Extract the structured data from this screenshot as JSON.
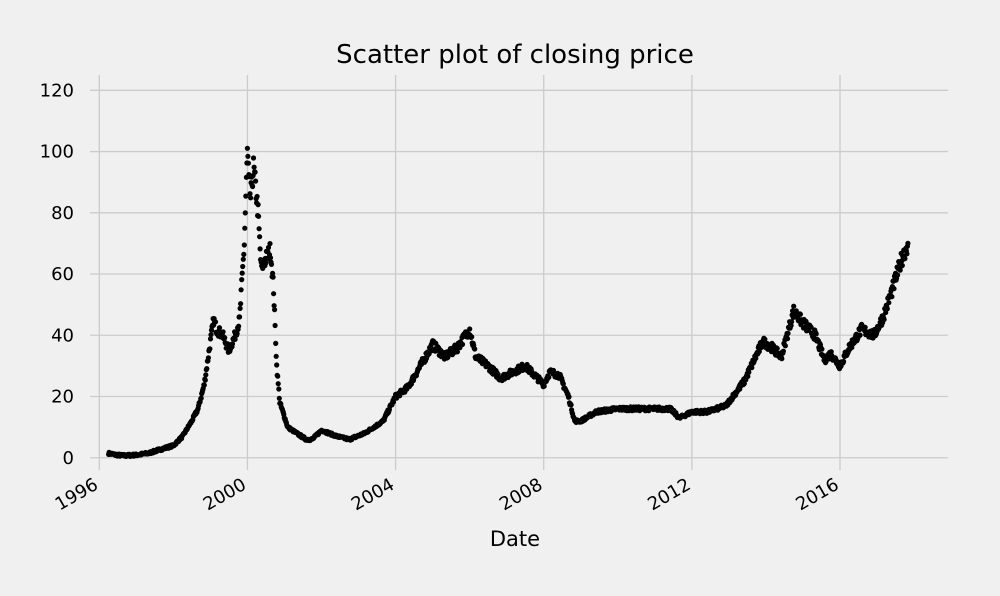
{
  "chart_data": {
    "type": "scatter",
    "title": "Scatter plot of closing price",
    "xlabel": "Date",
    "ylabel": "",
    "xlim": [
      "1995-10-01",
      "2018-12-01"
    ],
    "ylim": [
      -4,
      125
    ],
    "x_ticks": [
      "1996",
      "2000",
      "2004",
      "2008",
      "2012",
      "2016"
    ],
    "y_ticks": [
      0,
      20,
      40,
      60,
      80,
      100,
      120
    ],
    "grid": true,
    "marker_color": "#000000",
    "series": [
      {
        "points": [
          [
            "1996-04-01",
            1.5
          ],
          [
            "1996-06-01",
            1.0
          ],
          [
            "1996-09-01",
            0.7
          ],
          [
            "1997-01-01",
            0.9
          ],
          [
            "1997-05-01",
            1.5
          ],
          [
            "1997-09-01",
            2.8
          ],
          [
            "1998-01-01",
            4.0
          ],
          [
            "1998-04-01",
            7.0
          ],
          [
            "1998-07-01",
            12.0
          ],
          [
            "1998-09-01",
            16.0
          ],
          [
            "1998-11-01",
            24.0
          ],
          [
            "1999-01-01",
            38.0
          ],
          [
            "1999-02-01",
            45.0
          ],
          [
            "1999-03-01",
            42.0
          ],
          [
            "1999-05-01",
            40.0
          ],
          [
            "1999-07-01",
            35.0
          ],
          [
            "1999-09-01",
            40.0
          ],
          [
            "1999-10-15",
            45.0
          ],
          [
            "1999-12-01",
            70.0
          ],
          [
            "1999-12-31",
            100.0
          ],
          [
            "2000-01-15",
            90.0
          ],
          [
            "2000-02-01",
            85.0
          ],
          [
            "2000-03-01",
            95.0
          ],
          [
            "2000-04-15",
            80.0
          ],
          [
            "2000-05-15",
            62.0
          ],
          [
            "2000-07-01",
            65.0
          ],
          [
            "2000-08-15",
            68.0
          ],
          [
            "2000-09-15",
            55.0
          ],
          [
            "2000-10-15",
            30.0
          ],
          [
            "2000-11-15",
            18.0
          ],
          [
            "2000-12-15",
            15.0
          ],
          [
            "2001-02-01",
            10.0
          ],
          [
            "2001-05-01",
            8.0
          ],
          [
            "2001-08-01",
            6.0
          ],
          [
            "2001-10-01",
            6.0
          ],
          [
            "2002-01-01",
            9.0
          ],
          [
            "2002-06-01",
            7.0
          ],
          [
            "2002-10-01",
            6.0
          ],
          [
            "2003-03-01",
            8.0
          ],
          [
            "2003-09-01",
            12.0
          ],
          [
            "2004-01-01",
            20.0
          ],
          [
            "2004-05-01",
            23.0
          ],
          [
            "2004-09-01",
            30.0
          ],
          [
            "2005-01-01",
            37.0
          ],
          [
            "2005-05-01",
            33.0
          ],
          [
            "2005-09-01",
            36.0
          ],
          [
            "2006-01-01",
            42.0
          ],
          [
            "2006-03-01",
            33.0
          ],
          [
            "2006-07-01",
            30.0
          ],
          [
            "2006-11-01",
            26.0
          ],
          [
            "2007-03-01",
            28.0
          ],
          [
            "2007-07-01",
            30.0
          ],
          [
            "2007-11-01",
            26.0
          ],
          [
            "2008-01-01",
            24.0
          ],
          [
            "2008-03-01",
            28.0
          ],
          [
            "2008-06-01",
            27.0
          ],
          [
            "2008-09-01",
            20.0
          ],
          [
            "2008-11-01",
            12.0
          ],
          [
            "2009-01-01",
            12.0
          ],
          [
            "2009-06-01",
            15.0
          ],
          [
            "2010-01-01",
            16.0
          ],
          [
            "2010-06-01",
            16.0
          ],
          [
            "2011-01-01",
            16.0
          ],
          [
            "2011-06-01",
            16.0
          ],
          [
            "2011-09-01",
            13.0
          ],
          [
            "2012-01-01",
            15.0
          ],
          [
            "2012-06-01",
            15.0
          ],
          [
            "2012-12-01",
            17.0
          ],
          [
            "2013-06-01",
            25.0
          ],
          [
            "2013-12-01",
            38.0
          ],
          [
            "2014-03-01",
            36.0
          ],
          [
            "2014-06-01",
            33.0
          ],
          [
            "2014-10-01",
            48.0
          ],
          [
            "2015-01-01",
            44.0
          ],
          [
            "2015-05-01",
            40.0
          ],
          [
            "2015-08-01",
            32.0
          ],
          [
            "2015-10-01",
            34.0
          ],
          [
            "2016-01-01",
            30.0
          ],
          [
            "2016-04-01",
            36.0
          ],
          [
            "2016-08-01",
            42.0
          ],
          [
            "2016-12-01",
            40.0
          ],
          [
            "2017-03-01",
            46.0
          ],
          [
            "2017-06-01",
            55.0
          ],
          [
            "2017-09-01",
            65.0
          ],
          [
            "2017-11-01",
            70.0
          ]
        ]
      }
    ]
  }
}
